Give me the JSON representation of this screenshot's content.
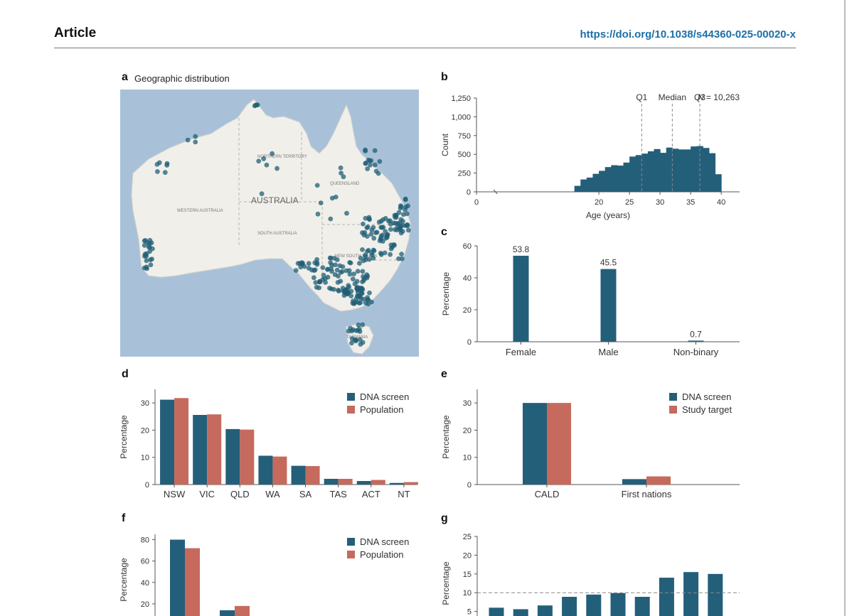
{
  "header": {
    "title": "Article",
    "doi": "https://doi.org/10.1038/s44360-025-00020-x"
  },
  "colors": {
    "dna": "#245f7a",
    "pop": "#c56a5d",
    "axis": "#555555"
  },
  "panels": {
    "a": {
      "letter": "a",
      "caption": "Geographic distribution",
      "map_labels": {
        "country": "AUSTRALIA",
        "nt": "NORTHERN TERRITORY",
        "wa": "WESTERN AUSTRALIA",
        "sa": "SOUTH AUSTRALIA",
        "qld": "QUEENSLAND",
        "nsw": "NEW SOUTH WALES",
        "tas": "TASMANIA"
      }
    },
    "b": {
      "letter": "b"
    },
    "c": {
      "letter": "c"
    },
    "d": {
      "letter": "d"
    },
    "e": {
      "letter": "e"
    },
    "f": {
      "letter": "f"
    },
    "g": {
      "letter": "g"
    }
  },
  "chart_data": [
    {
      "id": "b",
      "type": "bar",
      "title": "",
      "xlabel": "Age (years)",
      "ylabel": "Count",
      "xlim": [
        0,
        43
      ],
      "ylim": [
        0,
        1250
      ],
      "xticks": [
        0,
        20,
        25,
        30,
        35,
        40
      ],
      "yticks": [
        0,
        250,
        500,
        750,
        1000,
        1250
      ],
      "ytick_labels": [
        "0",
        "250",
        "500",
        "750",
        "1,000",
        "1,250"
      ],
      "bin_start": 16,
      "bin_width": 1,
      "values": [
        80,
        165,
        190,
        240,
        280,
        330,
        355,
        350,
        390,
        470,
        490,
        510,
        540,
        570,
        520,
        590,
        575,
        565,
        565,
        605,
        610,
        585,
        515,
        235
      ],
      "annotation": {
        "prefix": "N",
        "text": "= 10,263"
      },
      "reference_lines": [
        {
          "label": "Q1",
          "x": 27
        },
        {
          "label": "Median",
          "x": 32
        },
        {
          "label": "Q3",
          "x": 36.5
        }
      ]
    },
    {
      "id": "c",
      "type": "bar",
      "ylabel": "Percentage",
      "ylim": [
        0,
        60
      ],
      "yticks": [
        0,
        20,
        40,
        60
      ],
      "categories": [
        "Female",
        "Male",
        "Non-binary"
      ],
      "values": [
        53.8,
        45.5,
        0.7
      ],
      "value_labels": [
        "53.8",
        "45.5",
        "0.7"
      ]
    },
    {
      "id": "d",
      "type": "bar",
      "ylabel": "Percentage",
      "ylim": [
        0,
        35
      ],
      "yticks": [
        0,
        10,
        20,
        30
      ],
      "categories": [
        "NSW",
        "VIC",
        "QLD",
        "WA",
        "SA",
        "TAS",
        "ACT",
        "NT"
      ],
      "series": [
        {
          "name": "DNA screen",
          "values": [
            31.2,
            25.6,
            20.4,
            10.6,
            6.9,
            2.1,
            1.3,
            0.6
          ]
        },
        {
          "name": "Population",
          "values": [
            31.8,
            25.8,
            20.2,
            10.3,
            6.8,
            2.1,
            1.7,
            0.9
          ]
        }
      ],
      "legend": "top-right"
    },
    {
      "id": "e",
      "type": "bar",
      "ylabel": "Percentage",
      "ylim": [
        0,
        35
      ],
      "yticks": [
        0,
        10,
        20,
        30
      ],
      "categories": [
        "CALD",
        "First nations"
      ],
      "series": [
        {
          "name": "DNA screen",
          "values": [
            30.0,
            2.0
          ]
        },
        {
          "name": "Study target",
          "values": [
            30.0,
            3.0
          ]
        }
      ],
      "legend": "top-right"
    },
    {
      "id": "f",
      "type": "bar",
      "ylabel": "Percentage",
      "ylim": [
        0,
        85
      ],
      "yticks": [
        20,
        40,
        60,
        80
      ],
      "categories": [
        "",
        ""
      ],
      "series": [
        {
          "name": "DNA screen",
          "values": [
            80,
            14
          ]
        },
        {
          "name": "Population",
          "values": [
            72,
            18
          ]
        }
      ],
      "legend": "top-right"
    },
    {
      "id": "g",
      "type": "bar",
      "ylabel": "Percentage",
      "ylim": [
        0,
        25
      ],
      "yticks": [
        5,
        10,
        15,
        20,
        25
      ],
      "values": [
        6,
        5.6,
        6.6,
        8.9,
        9.5,
        9.9,
        8.9,
        14,
        15.5,
        15
      ],
      "reference_line": 10
    }
  ]
}
